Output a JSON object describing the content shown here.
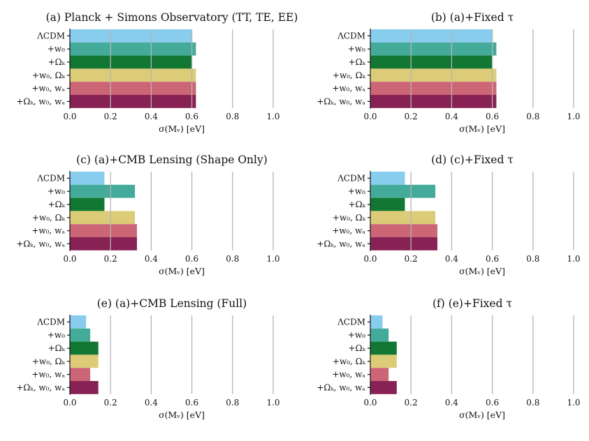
{
  "chart_data": [
    {
      "type": "bar",
      "orientation": "horizontal",
      "title": "(a) Planck + Simons Observatory (TT, TE, EE)",
      "categories": [
        "ΛCDM",
        "+w₀",
        "+Ωₖ",
        "+w₀, Ωₖ",
        "+w₀, wₐ",
        "+Ωₖ, w₀, wₐ"
      ],
      "values": [
        0.6,
        0.62,
        0.6,
        0.62,
        0.62,
        0.62
      ],
      "xlabel": "σ(Mᵥ) [eV]",
      "xlim": [
        0,
        1.1
      ],
      "xticks": [
        "0.0",
        "0.2",
        "0.4",
        "0.6",
        "0.8",
        "1.0"
      ],
      "grid": "vertical"
    },
    {
      "type": "bar",
      "orientation": "horizontal",
      "title": "(b) (a)+Fixed τ",
      "categories": [
        "ΛCDM",
        "+w₀",
        "+Ωₖ",
        "+w₀, Ωₖ",
        "+w₀, wₐ",
        "+Ωₖ, w₀, wₐ"
      ],
      "values": [
        0.6,
        0.62,
        0.6,
        0.62,
        0.62,
        0.62
      ],
      "xlabel": "σ(Mᵥ) [eV]",
      "xlim": [
        0,
        1.1
      ],
      "xticks": [
        "0.0",
        "0.2",
        "0.4",
        "0.6",
        "0.8",
        "1.0"
      ],
      "grid": "vertical"
    },
    {
      "type": "bar",
      "orientation": "horizontal",
      "title": "(c) (a)+CMB Lensing (Shape Only)",
      "categories": [
        "ΛCDM",
        "+w₀",
        "+Ωₖ",
        "+w₀, Ωₖ",
        "+w₀, wₐ",
        "+Ωₖ, w₀, wₐ"
      ],
      "values": [
        0.17,
        0.32,
        0.17,
        0.32,
        0.33,
        0.33
      ],
      "xlabel": "σ(Mᵥ) [eV]",
      "xlim": [
        0,
        1.1
      ],
      "xticks": [
        "0.0",
        "0.2",
        "0.4",
        "0.6",
        "0.8",
        "1.0"
      ],
      "grid": "vertical"
    },
    {
      "type": "bar",
      "orientation": "horizontal",
      "title": "(d) (c)+Fixed τ",
      "categories": [
        "ΛCDM",
        "+w₀",
        "+Ωₖ",
        "+w₀, Ωₖ",
        "+w₀, wₐ",
        "+Ωₖ, w₀, wₐ"
      ],
      "values": [
        0.17,
        0.32,
        0.17,
        0.32,
        0.33,
        0.33
      ],
      "xlabel": "σ(Mᵥ) [eV]",
      "xlim": [
        0,
        1.1
      ],
      "xticks": [
        "0.0",
        "0.2",
        "0.4",
        "0.6",
        "0.8",
        "1.0"
      ],
      "grid": "vertical"
    },
    {
      "type": "bar",
      "orientation": "horizontal",
      "title": "(e) (a)+CMB Lensing (Full)",
      "categories": [
        "ΛCDM",
        "+w₀",
        "+Ωₖ",
        "+w₀, Ωₖ",
        "+w₀, wₐ",
        "+Ωₖ, w₀, wₐ"
      ],
      "values": [
        0.08,
        0.1,
        0.14,
        0.14,
        0.1,
        0.14
      ],
      "xlabel": "σ(Mᵥ) [eV]",
      "xlim": [
        0,
        1.1
      ],
      "xticks": [
        "0.0",
        "0.2",
        "0.4",
        "0.6",
        "0.8",
        "1.0"
      ],
      "grid": "vertical"
    },
    {
      "type": "bar",
      "orientation": "horizontal",
      "title": "(f) (e)+Fixed τ",
      "categories": [
        "ΛCDM",
        "+w₀",
        "+Ωₖ",
        "+w₀, Ωₖ",
        "+w₀, wₐ",
        "+Ωₖ, w₀, wₐ"
      ],
      "values": [
        0.06,
        0.09,
        0.13,
        0.13,
        0.09,
        0.13
      ],
      "xlabel": "σ(Mᵥ) [eV]",
      "xlim": [
        0,
        1.1
      ],
      "xticks": [
        "0.0",
        "0.2",
        "0.4",
        "0.6",
        "0.8",
        "1.0"
      ],
      "grid": "vertical"
    }
  ],
  "colors": [
    "#88ccee",
    "#44aa99",
    "#117733",
    "#ddcc77",
    "#cc6677",
    "#882255"
  ]
}
